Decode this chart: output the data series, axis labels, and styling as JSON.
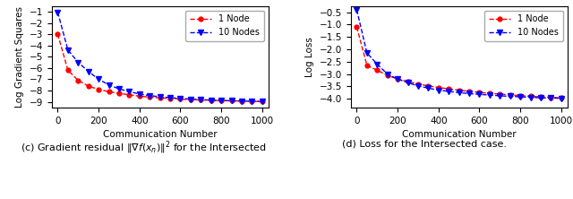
{
  "left_plot": {
    "ylabel": "Log Gradient Squares",
    "xlabel": "Communication Number",
    "ylim": [
      -9.5,
      -0.5
    ],
    "yticks": [
      -9,
      -8,
      -7,
      -6,
      -5,
      -4,
      -3,
      -2,
      -1
    ],
    "xlim": [
      -30,
      1030
    ],
    "xticks": [
      0,
      200,
      400,
      600,
      800,
      1000
    ],
    "x_1node": [
      0,
      50,
      100,
      150,
      200,
      250,
      300,
      350,
      400,
      450,
      500,
      550,
      600,
      650,
      700,
      750,
      800,
      850,
      900,
      950,
      1000
    ],
    "y_1node": [
      -3.0,
      -6.2,
      -7.1,
      -7.6,
      -7.9,
      -8.1,
      -8.25,
      -8.38,
      -8.5,
      -8.58,
      -8.65,
      -8.7,
      -8.75,
      -8.8,
      -8.83,
      -8.86,
      -8.89,
      -8.91,
      -8.93,
      -8.95,
      -8.97
    ],
    "x_10nodes": [
      0,
      50,
      100,
      150,
      200,
      250,
      300,
      350,
      400,
      450,
      500,
      550,
      600,
      650,
      700,
      750,
      800,
      850,
      900,
      950,
      1000
    ],
    "y_10nodes": [
      -1.05,
      -4.4,
      -5.5,
      -6.3,
      -7.0,
      -7.5,
      -7.85,
      -8.1,
      -8.3,
      -8.45,
      -8.55,
      -8.63,
      -8.7,
      -8.76,
      -8.81,
      -8.85,
      -8.88,
      -8.91,
      -8.93,
      -8.95,
      -8.97
    ],
    "color_1node": "#ff0000",
    "color_10nodes": "#0000ff",
    "legend_labels": [
      "1 Node",
      "10 Nodes"
    ]
  },
  "right_plot": {
    "ylabel": "Log Loss",
    "xlabel": "Communication Number",
    "ylim": [
      -4.35,
      -0.25
    ],
    "yticks": [
      -4.0,
      -3.5,
      -3.0,
      -2.5,
      -2.0,
      -1.5,
      -1.0,
      -0.5
    ],
    "xlim": [
      -30,
      1030
    ],
    "xticks": [
      0,
      200,
      400,
      600,
      800,
      1000
    ],
    "x_1node": [
      0,
      50,
      100,
      150,
      200,
      250,
      300,
      350,
      400,
      450,
      500,
      550,
      600,
      650,
      700,
      750,
      800,
      850,
      900,
      950,
      1000
    ],
    "y_1node": [
      -1.1,
      -2.65,
      -2.85,
      -3.05,
      -3.2,
      -3.3,
      -3.4,
      -3.48,
      -3.54,
      -3.6,
      -3.65,
      -3.7,
      -3.74,
      -3.78,
      -3.81,
      -3.84,
      -3.87,
      -3.9,
      -3.92,
      -3.94,
      -3.96
    ],
    "x_10nodes": [
      0,
      50,
      100,
      150,
      200,
      250,
      300,
      350,
      400,
      450,
      500,
      550,
      600,
      650,
      700,
      750,
      800,
      850,
      900,
      950,
      1000
    ],
    "y_10nodes": [
      -0.4,
      -2.15,
      -2.6,
      -3.0,
      -3.2,
      -3.35,
      -3.48,
      -3.57,
      -3.65,
      -3.7,
      -3.75,
      -3.79,
      -3.82,
      -3.85,
      -3.88,
      -3.9,
      -3.92,
      -3.94,
      -3.96,
      -3.97,
      -3.98
    ],
    "color_1node": "#ff0000",
    "color_10nodes": "#0000ff",
    "legend_labels": [
      "1 Node",
      "10 Nodes"
    ]
  },
  "caption_left": "(c) Gradient residual $\\|\\nabla f(x_n)\\|^2$ for the Intersected",
  "caption_right": "(d) Loss for the Intersected case.",
  "fig_width": 6.4,
  "fig_height": 2.22,
  "dpi": 100
}
